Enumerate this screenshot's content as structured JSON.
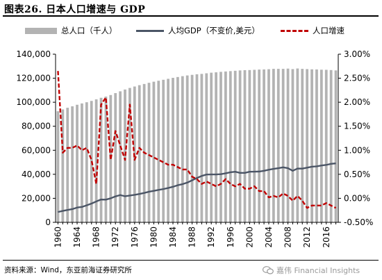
{
  "figure": {
    "title": "图表26. 日本人口增速与 GDP",
    "source": "资料来源：Wind，东亚前海证券研究所",
    "watermark": "嘉伟 Financial Insights"
  },
  "colors": {
    "bars": "#b3b3b3",
    "gdp_line": "#4b5566",
    "growth_line": "#c00000"
  },
  "chart_data": {
    "type": "bar",
    "title": "日本人口增速与 GDP",
    "x": [
      1960,
      1961,
      1962,
      1963,
      1964,
      1965,
      1966,
      1967,
      1968,
      1969,
      1970,
      1971,
      1972,
      1973,
      1974,
      1975,
      1976,
      1977,
      1978,
      1979,
      1980,
      1981,
      1982,
      1983,
      1984,
      1985,
      1986,
      1987,
      1988,
      1989,
      1990,
      1991,
      1992,
      1993,
      1994,
      1995,
      1996,
      1997,
      1998,
      1999,
      2000,
      2001,
      2002,
      2003,
      2004,
      2005,
      2006,
      2007,
      2008,
      2009,
      2010,
      2011,
      2012,
      2013,
      2014,
      2015,
      2016,
      2017,
      2018
    ],
    "xticks": [
      "1960",
      "1964",
      "1968",
      "1972",
      "1976",
      "1980",
      "1984",
      "1988",
      "1992",
      "1996",
      "2000",
      "2004",
      "2008",
      "2012",
      "2016"
    ],
    "y_left_ticks": [
      "0",
      "20,000",
      "40,000",
      "60,000",
      "80,000",
      "100,000",
      "120,000",
      "140,000"
    ],
    "y_right_ticks": [
      "-0.50%",
      "0.00%",
      "0.50%",
      "1.00%",
      "1.50%",
      "2.00%",
      "2.50%",
      "3.00%"
    ],
    "ylim_left": [
      0,
      140000
    ],
    "ylim_right": [
      -0.5,
      3.0
    ],
    "series": [
      {
        "name": "总人口（千人）",
        "type": "bar",
        "axis": "left",
        "values": [
          92500,
          94000,
          95400,
          96600,
          97900,
          99000,
          100000,
          101100,
          102400,
          103700,
          104700,
          106000,
          107600,
          109100,
          110600,
          111900,
          113100,
          114200,
          115200,
          116200,
          117100,
          117900,
          118700,
          119500,
          120300,
          121000,
          121700,
          122300,
          122800,
          123300,
          123600,
          124100,
          124600,
          124900,
          125300,
          125600,
          125900,
          126200,
          126500,
          126700,
          126800,
          127000,
          127200,
          127300,
          127500,
          127800,
          127800,
          127800,
          128000,
          127600,
          128100,
          127800,
          127600,
          127400,
          127300,
          127100,
          127000,
          126800,
          126500
        ]
      },
      {
        "name": "人均GDP（不变价,美元）",
        "type": "line",
        "axis": "left",
        "values": [
          8600,
          9500,
          10300,
          11000,
          12300,
          12800,
          14200,
          15600,
          17400,
          19000,
          18900,
          20000,
          21600,
          22700,
          21700,
          22300,
          22900,
          23600,
          24500,
          25500,
          26200,
          27000,
          27700,
          28600,
          29600,
          30900,
          31800,
          33100,
          35000,
          36900,
          38600,
          39800,
          39900,
          39900,
          40100,
          40800,
          41700,
          42100,
          41200,
          41200,
          42100,
          42200,
          42300,
          42900,
          43800,
          44500,
          45100,
          45800,
          45100,
          42900,
          44800,
          44700,
          45500,
          46300,
          46600,
          47300,
          47800,
          48700,
          49100
        ]
      },
      {
        "name": "人口增速",
        "type": "line",
        "axis": "right",
        "values": [
          2.65,
          0.95,
          1.05,
          1.05,
          1.1,
          1.0,
          1.05,
          0.8,
          0.3,
          1.95,
          2.1,
          0.8,
          1.4,
          1.1,
          0.8,
          1.95,
          0.8,
          1.05,
          0.95,
          0.9,
          0.85,
          0.8,
          0.75,
          0.7,
          0.7,
          0.65,
          0.6,
          0.6,
          0.45,
          0.4,
          0.3,
          0.35,
          0.3,
          0.25,
          0.3,
          0.4,
          0.3,
          0.25,
          0.3,
          0.2,
          0.2,
          0.25,
          0.15,
          0.15,
          0.02,
          0.05,
          0.02,
          0.1,
          0.05,
          -0.05,
          0.05,
          -0.05,
          -0.2,
          -0.15,
          -0.15,
          -0.15,
          -0.1,
          -0.15,
          -0.2
        ]
      }
    ],
    "grid": false,
    "legend": "top"
  }
}
